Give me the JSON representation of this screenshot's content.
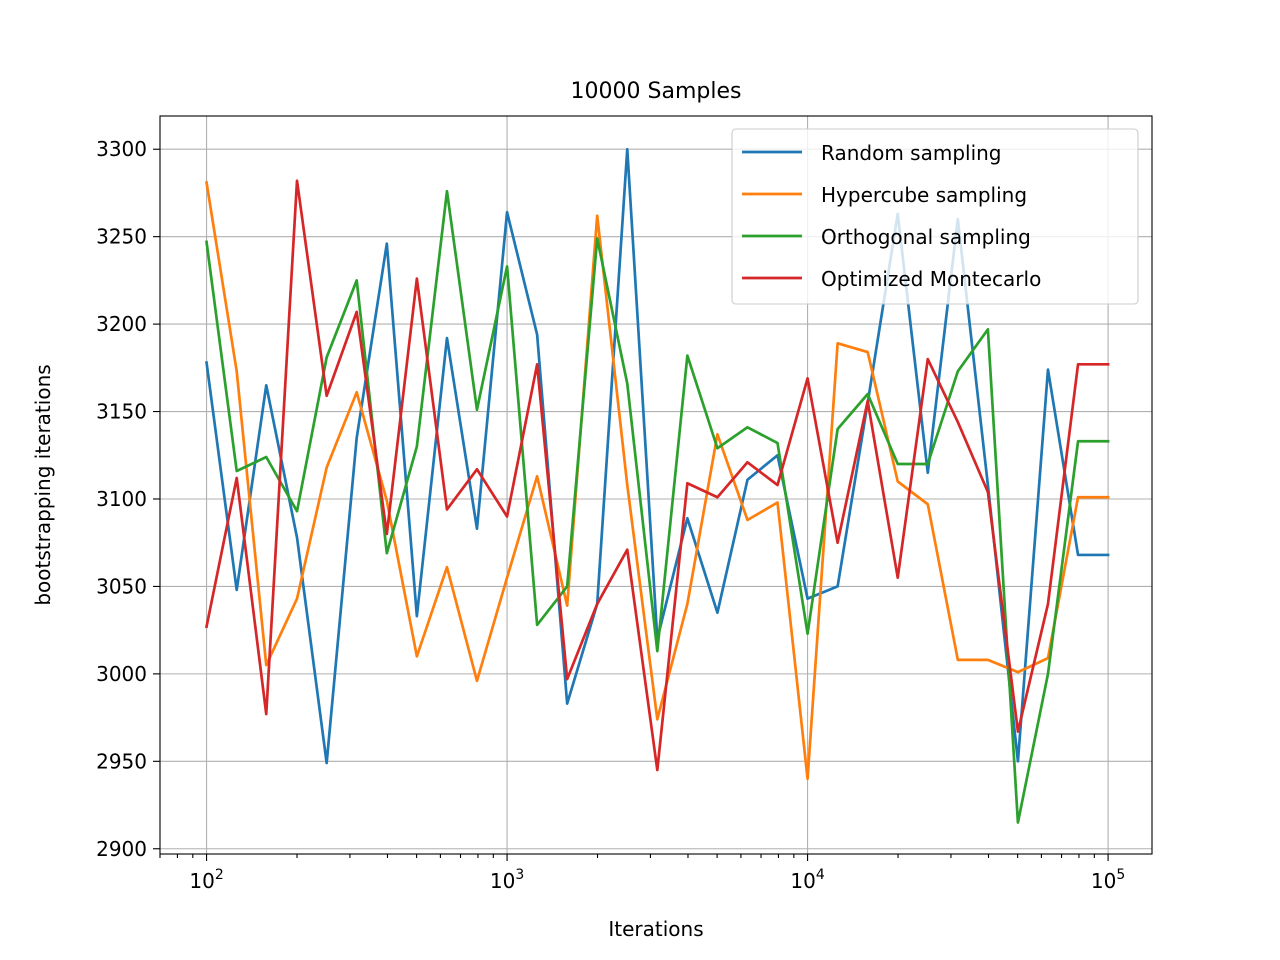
{
  "chart_data": {
    "type": "line",
    "title": "10000 Samples",
    "xlabel": "Iterations",
    "ylabel": "bootstrapping iterations",
    "x_scale": "log",
    "xlim": [
      70,
      140000
    ],
    "ylim": [
      2897,
      3319
    ],
    "grid": true,
    "legend_position": "top-right",
    "x_ticks": [
      {
        "value": 100,
        "base": "10",
        "exp": "2"
      },
      {
        "value": 1000,
        "base": "10",
        "exp": "3"
      },
      {
        "value": 10000,
        "base": "10",
        "exp": "4"
      },
      {
        "value": 100000,
        "base": "10",
        "exp": "5"
      }
    ],
    "y_ticks": [
      "2900",
      "2950",
      "3000",
      "3050",
      "3100",
      "3150",
      "3200",
      "3250",
      "3300"
    ],
    "x": [
      100,
      126,
      158,
      200,
      251,
      316,
      398,
      501,
      631,
      794,
      1000,
      1259,
      1585,
      1995,
      2512,
      3162,
      3981,
      5012,
      6310,
      7943,
      10000,
      12589,
      15849,
      19953,
      25119,
      31623,
      39811,
      50119,
      63096,
      79433,
      100000
    ],
    "series": [
      {
        "name": "Random sampling",
        "color": "#1f77b4",
        "values": [
          3178,
          3048,
          3165,
          3078,
          2949,
          3135,
          3246,
          3033,
          3192,
          3083,
          3264,
          3194,
          2983,
          3040,
          3300,
          3020,
          3089,
          3035,
          3111,
          3125,
          3043,
          3050,
          3155,
          3263,
          3115,
          3260,
          3108,
          2950,
          3174,
          3068,
          3068
        ]
      },
      {
        "name": "Hypercube sampling",
        "color": "#ff7f0e",
        "values": [
          3281,
          3173,
          3005,
          3043,
          3118,
          3161,
          3099,
          3010,
          3061,
          2996,
          3055,
          3113,
          3039,
          3262,
          3108,
          2974,
          3040,
          3137,
          3088,
          3098,
          2940,
          3189,
          3184,
          3110,
          3097,
          3008,
          3008,
          3001,
          3009,
          3101,
          3101
        ]
      },
      {
        "name": "Orthogonal sampling",
        "color": "#2ca02c",
        "values": [
          3247,
          3116,
          3124,
          3093,
          3181,
          3225,
          3069,
          3130,
          3276,
          3151,
          3233,
          3028,
          3050,
          3249,
          3166,
          3013,
          3182,
          3129,
          3141,
          3132,
          3023,
          3140,
          3160,
          3120,
          3120,
          3173,
          3197,
          2915,
          3000,
          3133,
          3133
        ]
      },
      {
        "name": "Optimized Montecarlo",
        "color": "#d62728",
        "values": [
          3027,
          3112,
          2977,
          3282,
          3159,
          3207,
          3080,
          3226,
          3094,
          3117,
          3090,
          3177,
          2997,
          3040,
          3071,
          2945,
          3109,
          3101,
          3121,
          3108,
          3169,
          3075,
          3156,
          3055,
          3180,
          3144,
          3104,
          2967,
          3040,
          3177,
          3177
        ]
      }
    ]
  }
}
